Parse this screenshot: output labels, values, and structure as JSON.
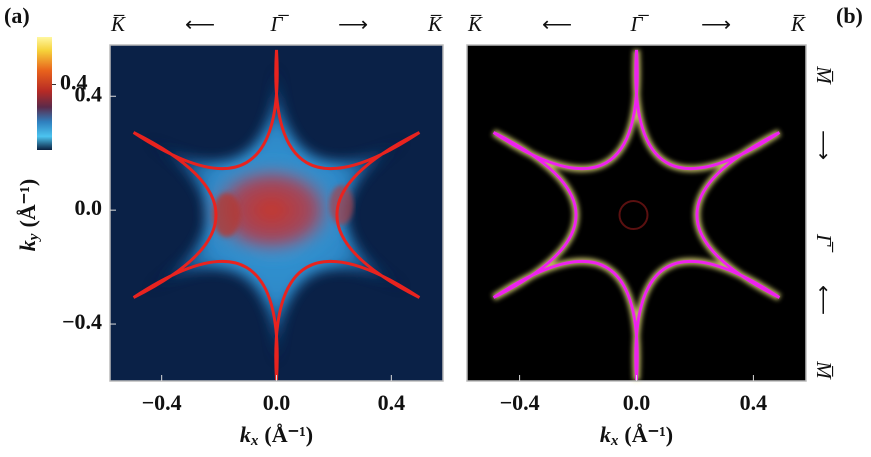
{
  "chart_data": [
    {
      "type": "heatmap",
      "panel_label": "(a)",
      "xlabel": {
        "symbol": "k",
        "subscript": "x",
        "unit": "(Å⁻¹)"
      },
      "ylabel": {
        "symbol": "k",
        "subscript": "y",
        "unit": "(Å⁻¹)"
      },
      "xlim": [
        -0.58,
        0.58
      ],
      "ylim": [
        -0.6,
        0.58
      ],
      "xticks": [
        {
          "value": -0.4,
          "label": "−0.4"
        },
        {
          "value": 0,
          "label": "0.0"
        },
        {
          "value": 0.4,
          "label": "0.4"
        }
      ],
      "yticks": [
        {
          "value": -0.4,
          "label": "−0.4"
        },
        {
          "value": 0,
          "label": "0.0"
        },
        {
          "value": 0.4,
          "label": "0.4"
        }
      ],
      "clim": [
        0,
        0.69
      ],
      "cticks": [
        {
          "value": 0.4,
          "label": "0.4"
        }
      ],
      "top_labels": [
        "K̅",
        "⟵",
        "Γ̅",
        "⟶",
        "K̅"
      ],
      "contour_color": "#e8231f"
    },
    {
      "type": "heatmap",
      "panel_label": "(b)",
      "xlabel": {
        "symbol": "k",
        "subscript": "x",
        "unit": "(Å⁻¹)"
      },
      "xlim": [
        -0.58,
        0.58
      ],
      "ylim": [
        -0.6,
        0.58
      ],
      "xticks": [
        {
          "value": -0.4,
          "label": "−0.4"
        },
        {
          "value": 0,
          "label": "0.0"
        },
        {
          "value": 0.4,
          "label": "0.4"
        }
      ],
      "top_labels": [
        "K̅",
        "⟵",
        "Γ̅",
        "⟶",
        "K̅"
      ],
      "right_labels": [
        "M̅",
        "⟶",
        "Γ̅",
        "⟵",
        "M̅"
      ],
      "contour_color": "#ee22ee"
    }
  ]
}
